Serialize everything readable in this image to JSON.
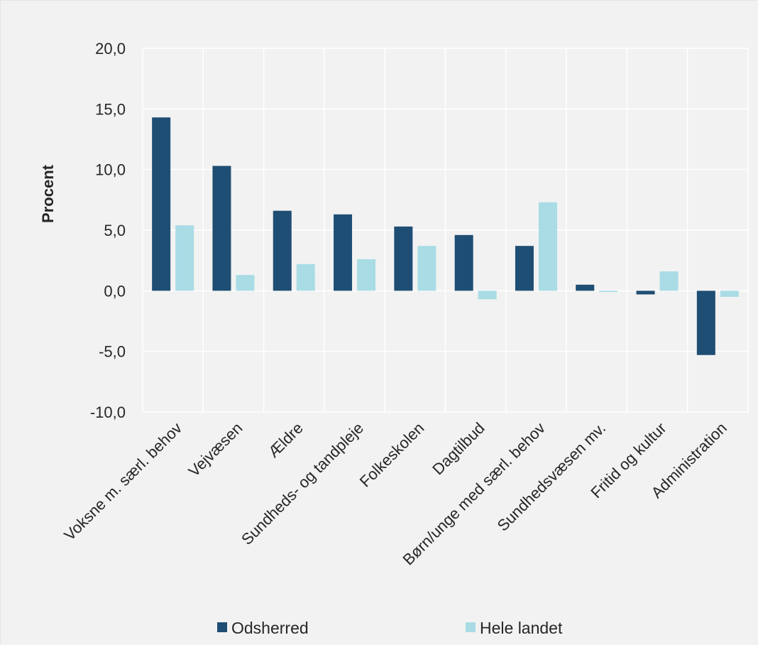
{
  "chart_data": {
    "type": "bar",
    "title": "",
    "xlabel": "",
    "ylabel": "Procent",
    "ylim": [
      -10,
      20
    ],
    "yticks": [
      -10,
      -5,
      0,
      5,
      10,
      15,
      20
    ],
    "ytick_labels": [
      "-10,0",
      "-5,0",
      "0,0",
      "5,0",
      "10,0",
      "15,0",
      "20,0"
    ],
    "grid": true,
    "legend_position": "bottom",
    "categories": [
      "Voksne m. særl. behov",
      "Vejvæsen",
      "Ældre",
      "Sundheds- og tandpleje",
      "Folkeskolen",
      "Dagtilbud",
      "Børn/unge med særl. behov",
      "Sundhedsvæsen mv.",
      "Fritid og kultur",
      "Administration"
    ],
    "series": [
      {
        "name": "Odsherred",
        "color": "#1f4e74",
        "values": [
          14.3,
          10.3,
          6.6,
          6.3,
          5.3,
          4.6,
          3.7,
          0.5,
          -0.3,
          -5.3
        ]
      },
      {
        "name": "Hele landet",
        "color": "#a9dce5",
        "values": [
          5.4,
          1.3,
          2.2,
          2.6,
          3.7,
          -0.7,
          7.3,
          -0.1,
          1.6,
          -0.5
        ]
      }
    ]
  }
}
